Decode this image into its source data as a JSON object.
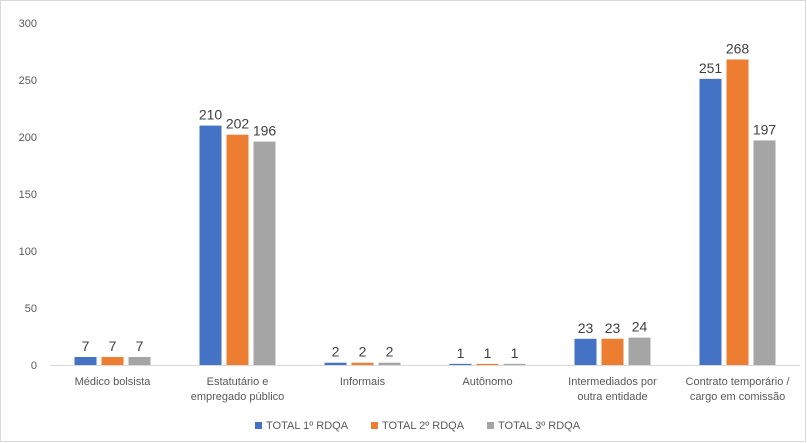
{
  "chart_data": {
    "type": "bar",
    "categories": [
      [
        "Médico bolsista"
      ],
      [
        "Estatutário e",
        "empregado público"
      ],
      [
        "Informais"
      ],
      [
        "Autônomo"
      ],
      [
        "Intermediados por",
        "outra entidade"
      ],
      [
        "Contrato temporário /",
        "cargo em comissão"
      ]
    ],
    "series": [
      {
        "name": "TOTAL 1º RDQA",
        "color": "#4472c4",
        "values": [
          7,
          210,
          2,
          1,
          23,
          251
        ]
      },
      {
        "name": "TOTAL 2º RDQA",
        "color": "#ed7d31",
        "values": [
          7,
          202,
          2,
          1,
          23,
          268
        ]
      },
      {
        "name": "TOTAL 3º RDQA",
        "color": "#a5a5a5",
        "values": [
          7,
          196,
          2,
          1,
          24,
          197
        ]
      }
    ],
    "ylim": [
      0,
      300
    ],
    "yticks": [
      0,
      50,
      100,
      150,
      200,
      250,
      300
    ],
    "grid": false,
    "legend": "bottom",
    "data_labels": true
  }
}
